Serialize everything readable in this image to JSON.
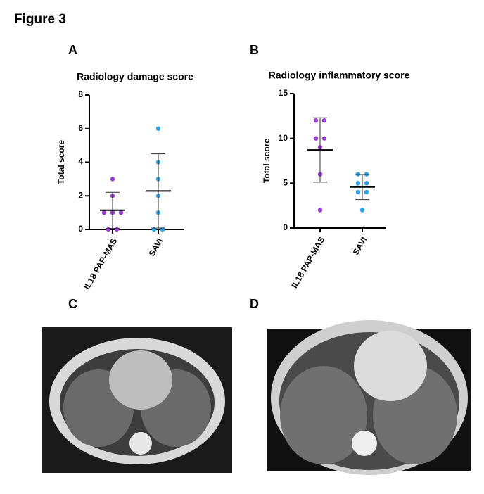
{
  "figure": {
    "title": "Figure 3",
    "panels": [
      "A",
      "B",
      "C",
      "D"
    ]
  },
  "chart_data": [
    {
      "type": "dot",
      "title": "Radiology damage score",
      "y_label": "Total score",
      "categories": [
        "IL18 PAP-MAS",
        "SAVI"
      ],
      "colors": [
        "#9b3fd6",
        "#2aa3e8"
      ],
      "points": [
        [
          3,
          2,
          1,
          1,
          1,
          0,
          0
        ],
        [
          6,
          4,
          3,
          2,
          1,
          0,
          0
        ]
      ],
      "mean": [
        1.14,
        2.29
      ],
      "error": [
        1.07,
        2.21
      ],
      "ylim": [
        0,
        8
      ],
      "yticks": [
        0,
        2,
        4,
        6,
        8
      ]
    },
    {
      "type": "dot",
      "title": "Radiology inflammatory score",
      "y_label": "Total score",
      "categories": [
        "IL18 PAP-MAS",
        "SAVI"
      ],
      "colors": [
        "#9b3fd6",
        "#2aa3e8"
      ],
      "points": [
        [
          12,
          12,
          10,
          10,
          9,
          6,
          2
        ],
        [
          6,
          6,
          5,
          5,
          4,
          4,
          2
        ]
      ],
      "mean": [
        8.71,
        4.57
      ],
      "error": [
        3.6,
        1.4
      ],
      "ylim": [
        0,
        15
      ],
      "yticks": [
        0,
        5,
        10,
        15
      ]
    }
  ]
}
